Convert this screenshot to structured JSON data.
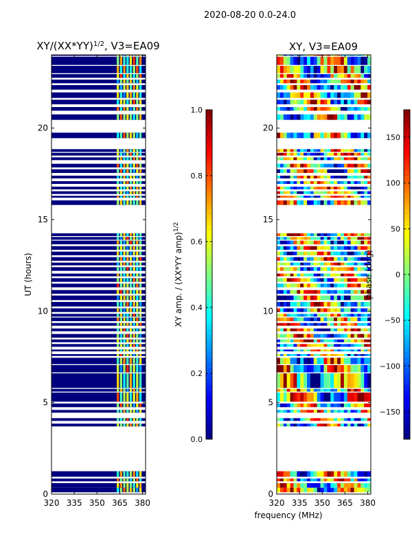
{
  "figure_title": "2020-08-20 0.0-24.0",
  "shared_xlabel": "frequency (MHz)",
  "shared_ylabel": "UT (hours)",
  "colors": {
    "jet": [
      "#00007f",
      "#0000ff",
      "#007fff",
      "#00ffff",
      "#7fff7f",
      "#ffff00",
      "#ff7f00",
      "#ff0000",
      "#7f0000"
    ],
    "background": "#ffffff"
  },
  "chart_data": [
    {
      "type": "heatmap",
      "title": "XY/(XX*YY)",
      "title_sup": "1/2",
      "title_suffix": ", V3=EA09",
      "xlabel": "frequency (MHz)",
      "ylabel": "UT (hours)",
      "xlim": [
        320,
        382
      ],
      "ylim": [
        0,
        24
      ],
      "xticks": [
        320,
        335,
        350,
        365,
        380
      ],
      "yticks": [
        0,
        5,
        10,
        15,
        20
      ],
      "background_value": 0.0,
      "active_band_mhz": [
        363,
        380
      ],
      "active_band_values": [
        0.35,
        0.55,
        0.75,
        0.45,
        0.65,
        0.5
      ],
      "colorbar": {
        "label": "XY amp. / (XX*YY amp)",
        "label_sup": "1/2",
        "range": [
          0.0,
          1.0
        ],
        "ticks": [
          "0.0",
          "0.2",
          "0.4",
          "0.6",
          "0.8",
          "1.0"
        ]
      }
    },
    {
      "type": "heatmap",
      "title": "XY, V3=EA09",
      "xlabel": "frequency (MHz)",
      "ylabel": "",
      "xlim": [
        320,
        382
      ],
      "ylim": [
        0,
        24
      ],
      "xticks": [
        320,
        335,
        350,
        365,
        380
      ],
      "yticks": [
        0,
        5,
        10,
        15,
        20
      ],
      "value_range": [
        -180,
        180
      ],
      "colorbar": {
        "label": "phase (deg)",
        "range": [
          -180,
          180
        ],
        "ticks": [
          "150",
          "100",
          "50",
          "0",
          "−50",
          "−100",
          "−150"
        ]
      }
    }
  ],
  "data_rows": [
    [
      0.1,
      0.35
    ],
    [
      0.35,
      0.6
    ],
    [
      0.7,
      0.85
    ],
    [
      0.95,
      1.25
    ],
    [
      3.7,
      3.85
    ],
    [
      4.0,
      4.15
    ],
    [
      4.45,
      4.6
    ],
    [
      4.75,
      4.95
    ],
    [
      5.05,
      5.55
    ],
    [
      5.6,
      5.75
    ],
    [
      5.8,
      6.6
    ],
    [
      6.65,
      7.05
    ],
    [
      7.1,
      7.45
    ],
    [
      7.55,
      7.65
    ],
    [
      7.8,
      7.9
    ],
    [
      8.05,
      8.2
    ],
    [
      8.3,
      8.45
    ],
    [
      8.55,
      8.75
    ],
    [
      8.9,
      9.05
    ],
    [
      9.2,
      9.35
    ],
    [
      9.45,
      9.65
    ],
    [
      9.7,
      9.85
    ],
    [
      9.95,
      10.15
    ],
    [
      10.25,
      10.5
    ],
    [
      10.6,
      10.85
    ],
    [
      10.95,
      11.15
    ],
    [
      11.3,
      11.5
    ],
    [
      11.6,
      11.8
    ],
    [
      11.9,
      12.05
    ],
    [
      12.2,
      12.4
    ],
    [
      12.5,
      12.65
    ],
    [
      12.75,
      12.95
    ],
    [
      13.05,
      13.25
    ],
    [
      13.35,
      13.55
    ],
    [
      13.65,
      13.85
    ],
    [
      13.9,
      14.05
    ],
    [
      14.1,
      14.25
    ],
    [
      15.8,
      16.05
    ],
    [
      16.2,
      16.3
    ],
    [
      16.4,
      16.55
    ],
    [
      16.65,
      16.8
    ],
    [
      16.95,
      17.1
    ],
    [
      17.25,
      17.4
    ],
    [
      17.55,
      17.75
    ],
    [
      17.85,
      18.05
    ],
    [
      18.25,
      18.4
    ],
    [
      18.5,
      18.65
    ],
    [
      18.7,
      18.85
    ],
    [
      19.45,
      19.75
    ],
    [
      20.45,
      20.75
    ],
    [
      20.95,
      21.15
    ],
    [
      21.3,
      21.55
    ],
    [
      21.65,
      21.95
    ],
    [
      22.1,
      22.35
    ],
    [
      22.45,
      22.65
    ],
    [
      22.75,
      22.95
    ],
    [
      23.0,
      23.4
    ],
    [
      23.45,
      23.9
    ],
    [
      23.95,
      24.0
    ]
  ]
}
